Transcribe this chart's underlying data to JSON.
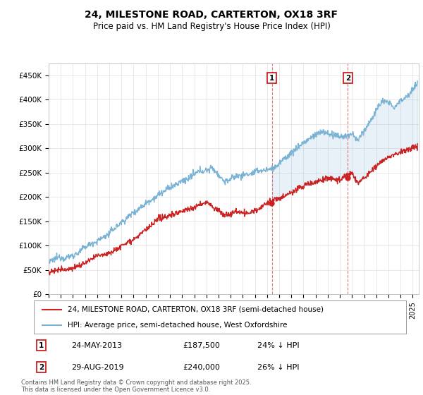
{
  "title": "24, MILESTONE ROAD, CARTERTON, OX18 3RF",
  "subtitle": "Price paid vs. HM Land Registry's House Price Index (HPI)",
  "ylabel_ticks": [
    "£0",
    "£50K",
    "£100K",
    "£150K",
    "£200K",
    "£250K",
    "£300K",
    "£350K",
    "£400K",
    "£450K"
  ],
  "ytick_values": [
    0,
    50000,
    100000,
    150000,
    200000,
    250000,
    300000,
    350000,
    400000,
    450000
  ],
  "ylim": [
    0,
    475000
  ],
  "xlim_start": 1995.0,
  "xlim_end": 2025.5,
  "hpi_color": "#7ab3d4",
  "price_color": "#cc2222",
  "sale1_x": 2013.39,
  "sale1_y": 187500,
  "sale2_x": 2019.66,
  "sale2_y": 240000,
  "sale1_label": "1",
  "sale2_label": "2",
  "sale1_date": "24-MAY-2013",
  "sale1_price": "£187,500",
  "sale1_hpi": "24% ↓ HPI",
  "sale2_date": "29-AUG-2019",
  "sale2_price": "£240,000",
  "sale2_hpi": "26% ↓ HPI",
  "legend_line1": "24, MILESTONE ROAD, CARTERTON, OX18 3RF (semi-detached house)",
  "legend_line2": "HPI: Average price, semi-detached house, West Oxfordshire",
  "footer": "Contains HM Land Registry data © Crown copyright and database right 2025.\nThis data is licensed under the Open Government Licence v3.0.",
  "fig_width": 6.0,
  "fig_height": 5.6,
  "fig_dpi": 100
}
